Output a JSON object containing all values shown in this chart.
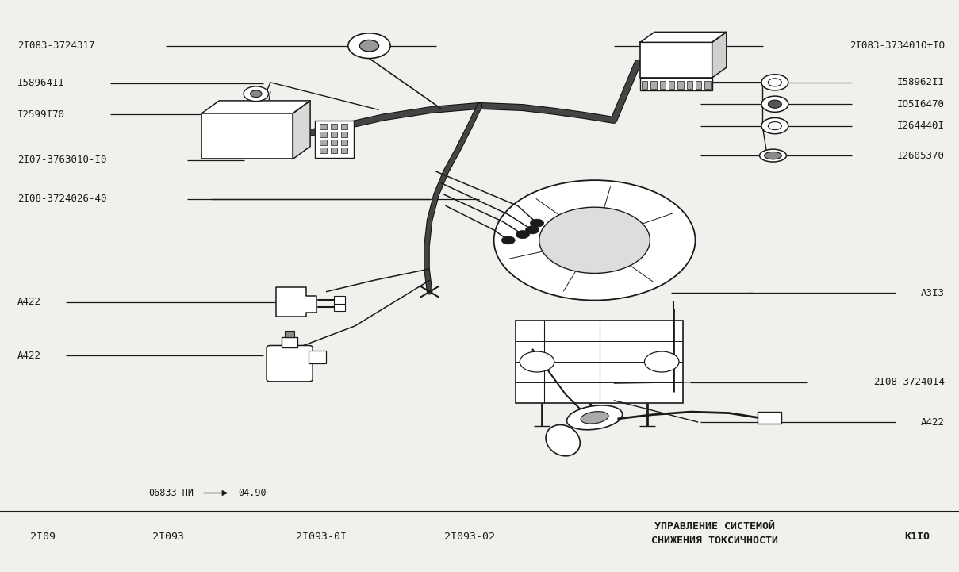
{
  "bg_color": "#f0f0ec",
  "line_color": "#1a1a1a",
  "text_color": "#1a1a1a",
  "figsize": [
    12.09,
    7.21
  ],
  "dpi": 100,
  "labels_left": [
    {
      "text": "2I083-3724317",
      "xn": 0.018,
      "yn": 0.92,
      "line_to_xn": 0.455
    },
    {
      "text": "I58964II",
      "xn": 0.018,
      "yn": 0.855,
      "line_to_xn": 0.275
    },
    {
      "text": "I2599I70",
      "xn": 0.018,
      "yn": 0.8,
      "line_to_xn": 0.275
    },
    {
      "text": "2I07-3763010-I0",
      "xn": 0.018,
      "yn": 0.72,
      "line_to_xn": 0.255
    },
    {
      "text": "2I08-3724026-40",
      "xn": 0.018,
      "yn": 0.652,
      "line_to_xn": 0.5
    }
  ],
  "labels_right": [
    {
      "text": "2I083-373401O+IO",
      "xn": 0.985,
      "yn": 0.92,
      "line_from_xn": 0.64
    },
    {
      "text": "I58962II",
      "xn": 0.985,
      "yn": 0.856,
      "line_from_xn": 0.73
    },
    {
      "text": "IO5I6470",
      "xn": 0.985,
      "yn": 0.818,
      "line_from_xn": 0.73
    },
    {
      "text": "I264440I",
      "xn": 0.985,
      "yn": 0.78,
      "line_from_xn": 0.73
    },
    {
      "text": "I2605370",
      "xn": 0.985,
      "yn": 0.728,
      "line_from_xn": 0.73
    },
    {
      "text": "A3I3",
      "xn": 0.985,
      "yn": 0.488,
      "line_from_xn": 0.78
    }
  ],
  "labels_lower_left": [
    {
      "text": "A422",
      "xn": 0.018,
      "yn": 0.472,
      "line_to_xn": 0.29
    },
    {
      "text": "A422",
      "xn": 0.018,
      "yn": 0.378,
      "line_to_xn": 0.275
    }
  ],
  "labels_lower_right": [
    {
      "text": "2I08-37240I4",
      "xn": 0.985,
      "yn": 0.332,
      "line_from_xn": 0.72
    },
    {
      "text": "A422",
      "xn": 0.985,
      "yn": 0.262,
      "line_from_xn": 0.73
    }
  ],
  "bottom_labels": [
    {
      "text": "2I09",
      "xn": 0.045,
      "yn": 0.062
    },
    {
      "text": "2I093",
      "xn": 0.175,
      "yn": 0.062
    },
    {
      "text": "2I093-0I",
      "xn": 0.335,
      "yn": 0.062
    },
    {
      "text": "2I093-02",
      "xn": 0.49,
      "yn": 0.062
    }
  ],
  "bottom_right": [
    {
      "text": "УПРАВЛЕНИЕ СИСТЕМОЙ",
      "xn": 0.745,
      "yn": 0.08
    },
    {
      "text": "СНИЖЕНИЯ ТОКСИЧНОСТИ",
      "xn": 0.745,
      "yn": 0.055
    }
  ],
  "page_ref": {
    "text": "K1IO",
    "xn": 0.97,
    "yn": 0.062
  },
  "doc_ref": {
    "text": "06833-ПИ",
    "xn": 0.155,
    "yn": 0.138,
    "arrow_x1n": 0.21,
    "arrow_x2n": 0.24,
    "arrow_yn": 0.138,
    "text2": "04.90",
    "text2_xn": 0.248,
    "text2_yn": 0.138
  }
}
